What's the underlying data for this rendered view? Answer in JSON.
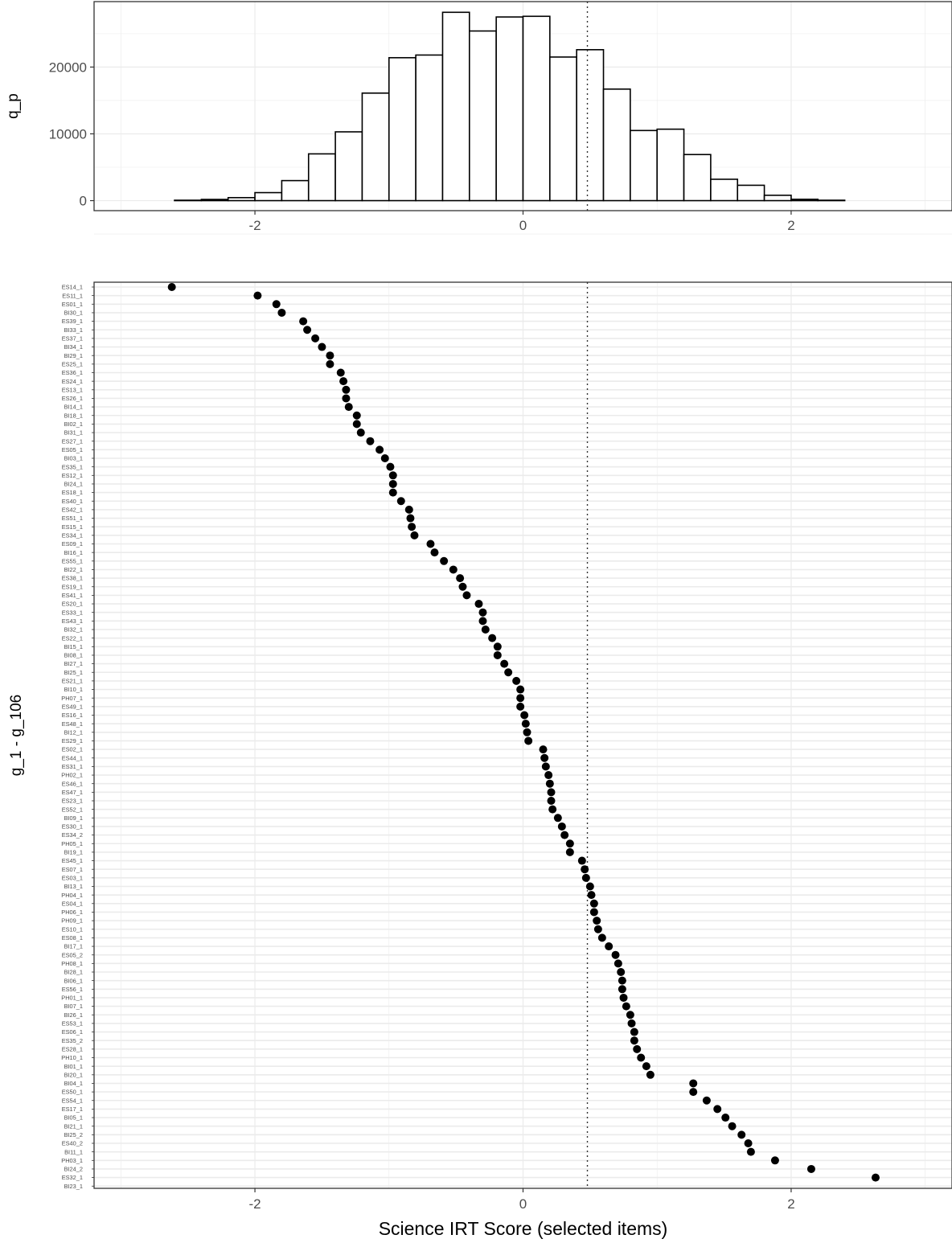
{
  "chart_data": [
    {
      "type": "bar",
      "subtype": "histogram",
      "ylabel": "q_p",
      "xlabel": "",
      "xlim": [
        -3.2,
        3.2
      ],
      "ylim": [
        -1500,
        29800
      ],
      "x_ticks": [
        -2,
        0,
        2
      ],
      "y_ticks": [
        0,
        10000,
        20000
      ],
      "ref_line_x": 0.48,
      "grid": true,
      "bin_width": 0.2,
      "bins": [
        {
          "x0": -3.0,
          "x1": -2.8,
          "count": 0
        },
        {
          "x0": -2.8,
          "x1": -2.6,
          "count": 0
        },
        {
          "x0": -2.6,
          "x1": -2.4,
          "count": 60
        },
        {
          "x0": -2.4,
          "x1": -2.2,
          "count": 180
        },
        {
          "x0": -2.2,
          "x1": -2.0,
          "count": 450
        },
        {
          "x0": -2.0,
          "x1": -1.8,
          "count": 1200
        },
        {
          "x0": -1.8,
          "x1": -1.6,
          "count": 3000
        },
        {
          "x0": -1.6,
          "x1": -1.4,
          "count": 7000
        },
        {
          "x0": -1.4,
          "x1": -1.2,
          "count": 10300
        },
        {
          "x0": -1.2,
          "x1": -1.0,
          "count": 16100
        },
        {
          "x0": -1.0,
          "x1": -0.8,
          "count": 21400
        },
        {
          "x0": -0.8,
          "x1": -0.6,
          "count": 21800
        },
        {
          "x0": -0.6,
          "x1": -0.4,
          "count": 28200
        },
        {
          "x0": -0.4,
          "x1": -0.2,
          "count": 25400
        },
        {
          "x0": -0.2,
          "x1": 0.0,
          "count": 27500
        },
        {
          "x0": 0.0,
          "x1": 0.2,
          "count": 27600
        },
        {
          "x0": 0.2,
          "x1": 0.4,
          "count": 21500
        },
        {
          "x0": 0.4,
          "x1": 0.6,
          "count": 22600
        },
        {
          "x0": 0.6,
          "x1": 0.8,
          "count": 16700
        },
        {
          "x0": 0.8,
          "x1": 1.0,
          "count": 10500
        },
        {
          "x0": 1.0,
          "x1": 1.2,
          "count": 10700
        },
        {
          "x0": 1.2,
          "x1": 1.4,
          "count": 6900
        },
        {
          "x0": 1.4,
          "x1": 1.6,
          "count": 3200
        },
        {
          "x0": 1.6,
          "x1": 1.8,
          "count": 2300
        },
        {
          "x0": 1.8,
          "x1": 2.0,
          "count": 800
        },
        {
          "x0": 2.0,
          "x1": 2.2,
          "count": 200
        },
        {
          "x0": 2.2,
          "x1": 2.4,
          "count": 60
        },
        {
          "x0": 2.4,
          "x1": 2.6,
          "count": 0
        },
        {
          "x0": 2.6,
          "x1": 2.8,
          "count": 0
        },
        {
          "x0": 2.8,
          "x1": 3.0,
          "count": 0
        }
      ]
    },
    {
      "type": "scatter",
      "subtype": "dot plot",
      "xlabel": "Science IRT Score (selected items)",
      "ylabel": "g_1 - g_106",
      "xlim": [
        -3.2,
        3.2
      ],
      "x_ticks": [
        -2,
        0,
        2
      ],
      "ref_line_x": 0.48,
      "grid": true,
      "points": [
        {
          "label": "ES14_1",
          "x": -2.62
        },
        {
          "label": "ES11_1",
          "x": -1.98
        },
        {
          "label": "ES01_1",
          "x": -1.84
        },
        {
          "label": "BI30_1",
          "x": -1.8
        },
        {
          "label": "ES39_1",
          "x": -1.64
        },
        {
          "label": "BI33_1",
          "x": -1.61
        },
        {
          "label": "ES37_1",
          "x": -1.55
        },
        {
          "label": "BI34_1",
          "x": -1.5
        },
        {
          "label": "BI29_1",
          "x": -1.44
        },
        {
          "label": "ES25_1",
          "x": -1.44
        },
        {
          "label": "ES36_1",
          "x": -1.36
        },
        {
          "label": "ES24_1",
          "x": -1.34
        },
        {
          "label": "ES13_1",
          "x": -1.32
        },
        {
          "label": "ES26_1",
          "x": -1.32
        },
        {
          "label": "BI14_1",
          "x": -1.3
        },
        {
          "label": "BI18_1",
          "x": -1.24
        },
        {
          "label": "BI02_1",
          "x": -1.24
        },
        {
          "label": "BI31_1",
          "x": -1.21
        },
        {
          "label": "ES27_1",
          "x": -1.14
        },
        {
          "label": "ES05_1",
          "x": -1.07
        },
        {
          "label": "BI03_1",
          "x": -1.03
        },
        {
          "label": "ES35_1",
          "x": -0.99
        },
        {
          "label": "ES12_1",
          "x": -0.97
        },
        {
          "label": "BI24_1",
          "x": -0.97
        },
        {
          "label": "ES18_1",
          "x": -0.97
        },
        {
          "label": "ES40_1",
          "x": -0.91
        },
        {
          "label": "ES42_1",
          "x": -0.85
        },
        {
          "label": "ES51_1",
          "x": -0.84
        },
        {
          "label": "ES15_1",
          "x": -0.83
        },
        {
          "label": "ES34_1",
          "x": -0.81
        },
        {
          "label": "ES09_1",
          "x": -0.69
        },
        {
          "label": "BI16_1",
          "x": -0.66
        },
        {
          "label": "ES55_1",
          "x": -0.59
        },
        {
          "label": "BI22_1",
          "x": -0.52
        },
        {
          "label": "ES38_1",
          "x": -0.47
        },
        {
          "label": "ES19_1",
          "x": -0.45
        },
        {
          "label": "ES41_1",
          "x": -0.42
        },
        {
          "label": "ES20_1",
          "x": -0.33
        },
        {
          "label": "ES33_1",
          "x": -0.3
        },
        {
          "label": "ES43_1",
          "x": -0.3
        },
        {
          "label": "BI32_1",
          "x": -0.28
        },
        {
          "label": "ES22_1",
          "x": -0.23
        },
        {
          "label": "BI15_1",
          "x": -0.19
        },
        {
          "label": "BI08_1",
          "x": -0.19
        },
        {
          "label": "BI27_1",
          "x": -0.14
        },
        {
          "label": "BI25_1",
          "x": -0.11
        },
        {
          "label": "ES21_1",
          "x": -0.05
        },
        {
          "label": "BI10_1",
          "x": -0.02
        },
        {
          "label": "PH07_1",
          "x": -0.02
        },
        {
          "label": "ES49_1",
          "x": -0.02
        },
        {
          "label": "ES16_1",
          "x": 0.01
        },
        {
          "label": "ES48_1",
          "x": 0.02
        },
        {
          "label": "BI12_1",
          "x": 0.03
        },
        {
          "label": "ES29_1",
          "x": 0.04
        },
        {
          "label": "ES02_1",
          "x": 0.15
        },
        {
          "label": "ES44_1",
          "x": 0.16
        },
        {
          "label": "ES31_1",
          "x": 0.17
        },
        {
          "label": "PH02_1",
          "x": 0.19
        },
        {
          "label": "ES46_1",
          "x": 0.2
        },
        {
          "label": "ES47_1",
          "x": 0.21
        },
        {
          "label": "ES23_1",
          "x": 0.21
        },
        {
          "label": "ES52_1",
          "x": 0.22
        },
        {
          "label": "BI09_1",
          "x": 0.26
        },
        {
          "label": "ES30_1",
          "x": 0.29
        },
        {
          "label": "ES34_2",
          "x": 0.31
        },
        {
          "label": "PH05_1",
          "x": 0.35
        },
        {
          "label": "BI19_1",
          "x": 0.35
        },
        {
          "label": "ES45_1",
          "x": 0.44
        },
        {
          "label": "ES07_1",
          "x": 0.46
        },
        {
          "label": "ES03_1",
          "x": 0.47
        },
        {
          "label": "BI13_1",
          "x": 0.5
        },
        {
          "label": "PH04_1",
          "x": 0.51
        },
        {
          "label": "ES04_1",
          "x": 0.53
        },
        {
          "label": "PH06_1",
          "x": 0.53
        },
        {
          "label": "PH09_1",
          "x": 0.55
        },
        {
          "label": "ES10_1",
          "x": 0.56
        },
        {
          "label": "ES08_1",
          "x": 0.59
        },
        {
          "label": "BI17_1",
          "x": 0.64
        },
        {
          "label": "ES05_2",
          "x": 0.69
        },
        {
          "label": "PH08_1",
          "x": 0.71
        },
        {
          "label": "BI28_1",
          "x": 0.73
        },
        {
          "label": "BI06_1",
          "x": 0.74
        },
        {
          "label": "ES56_1",
          "x": 0.74
        },
        {
          "label": "PH01_1",
          "x": 0.75
        },
        {
          "label": "BI07_1",
          "x": 0.77
        },
        {
          "label": "BI26_1",
          "x": 0.8
        },
        {
          "label": "ES53_1",
          "x": 0.81
        },
        {
          "label": "ES06_1",
          "x": 0.83
        },
        {
          "label": "ES35_2",
          "x": 0.83
        },
        {
          "label": "ES28_1",
          "x": 0.85
        },
        {
          "label": "PH10_1",
          "x": 0.88
        },
        {
          "label": "BI01_1",
          "x": 0.92
        },
        {
          "label": "BI20_1",
          "x": 0.95
        },
        {
          "label": "BI04_1",
          "x": 1.27
        },
        {
          "label": "ES50_1",
          "x": 1.27
        },
        {
          "label": "ES54_1",
          "x": 1.37
        },
        {
          "label": "ES17_1",
          "x": 1.45
        },
        {
          "label": "BI05_1",
          "x": 1.51
        },
        {
          "label": "BI21_1",
          "x": 1.56
        },
        {
          "label": "BI25_2",
          "x": 1.63
        },
        {
          "label": "ES40_2",
          "x": 1.68
        },
        {
          "label": "BI11_1",
          "x": 1.7
        },
        {
          "label": "PH03_1",
          "x": 1.88
        },
        {
          "label": "BI24_2",
          "x": 2.15
        },
        {
          "label": "ES32_1",
          "x": 2.63
        },
        {
          "label": "BI23_1",
          "x": null
        }
      ]
    }
  ]
}
